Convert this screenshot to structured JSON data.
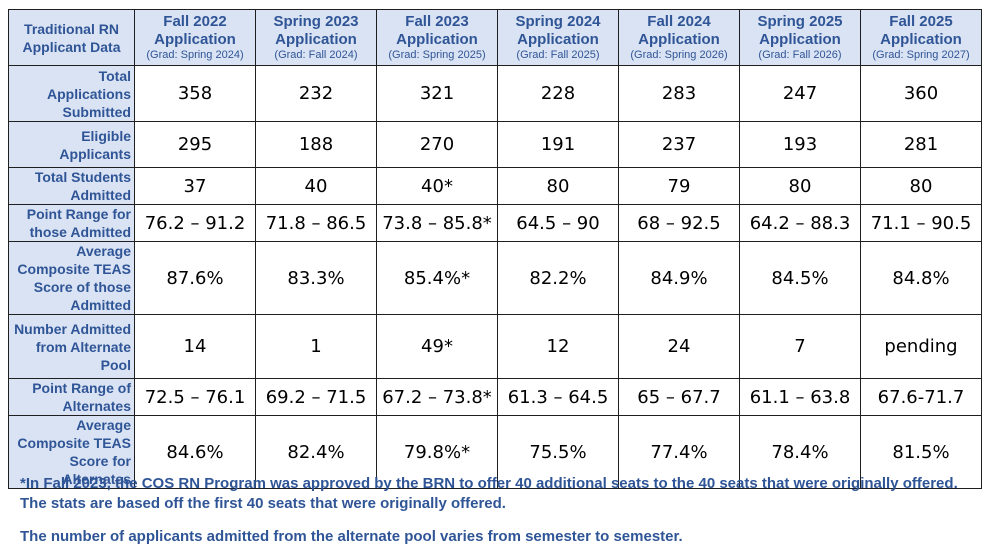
{
  "table": {
    "corner_label": "Traditional RN Applicant Data",
    "columns": [
      {
        "title": "Fall 2022 Application",
        "grad": "(Grad: Spring 2024)"
      },
      {
        "title": "Spring 2023 Application",
        "grad": "(Grad: Fall 2024)"
      },
      {
        "title": "Fall 2023 Application",
        "grad": "(Grad: Spring 2025)"
      },
      {
        "title": "Spring 2024 Application",
        "grad": "(Grad: Fall 2025)"
      },
      {
        "title": "Fall 2024 Application",
        "grad": "(Grad: Spring 2026)"
      },
      {
        "title": "Spring 2025 Application",
        "grad": "(Grad: Fall 2026)"
      },
      {
        "title": "Fall 2025 Application",
        "grad": "(Grad: Spring 2027)"
      }
    ],
    "rows": [
      {
        "label": "Total Applications Submitted",
        "values": [
          "358",
          "232",
          "321",
          "228",
          "283",
          "247",
          "360"
        ]
      },
      {
        "label": "Eligible Applicants",
        "values": [
          "295",
          "188",
          "270",
          "191",
          "237",
          "193",
          "281"
        ]
      },
      {
        "label": "Total Students Admitted",
        "values": [
          "37",
          "40",
          "40*",
          "80",
          "79",
          "80",
          "80"
        ]
      },
      {
        "label": "Point Range for those Admitted",
        "values": [
          "76.2 – 91.2",
          "71.8 – 86.5",
          "73.8 – 85.8*",
          "64.5 – 90",
          "68 – 92.5",
          "64.2 – 88.3",
          "71.1 – 90.5"
        ]
      },
      {
        "label": "Average Composite TEAS Score of those Admitted",
        "values": [
          "87.6%",
          "83.3%",
          "85.4%*",
          "82.2%",
          "84.9%",
          "84.5%",
          "84.8%"
        ]
      },
      {
        "label": "Number Admitted from Alternate Pool",
        "values": [
          "14",
          "1",
          "49*",
          "12",
          "24",
          "7",
          "pending"
        ]
      },
      {
        "label": "Point Range of Alternates",
        "values": [
          "72.5 – 76.1",
          "69.2 – 71.5",
          "67.2 – 73.8*",
          "61.3 – 64.5",
          "65 – 67.7",
          "61.1 – 63.8",
          "67.6-71.7"
        ]
      },
      {
        "label": "Average Composite TEAS Score for Alternates",
        "values": [
          "84.6%",
          "82.4%",
          "79.8%*",
          "75.5%",
          "77.4%",
          "78.4%",
          "81.5%"
        ]
      }
    ]
  },
  "footnotes": {
    "note1": "*In Fall 2023, the COS RN Program was approved by the BRN to offer 40 additional seats to the 40 seats that were originally offered. The stats are based off the first 40 seats that were originally offered.",
    "note2": "The number of applicants admitted from the alternate pool varies from semester to semester."
  },
  "colors": {
    "header_fill": "#dae3f3",
    "header_text": "#2f5597",
    "note_text": "#2f5597"
  }
}
